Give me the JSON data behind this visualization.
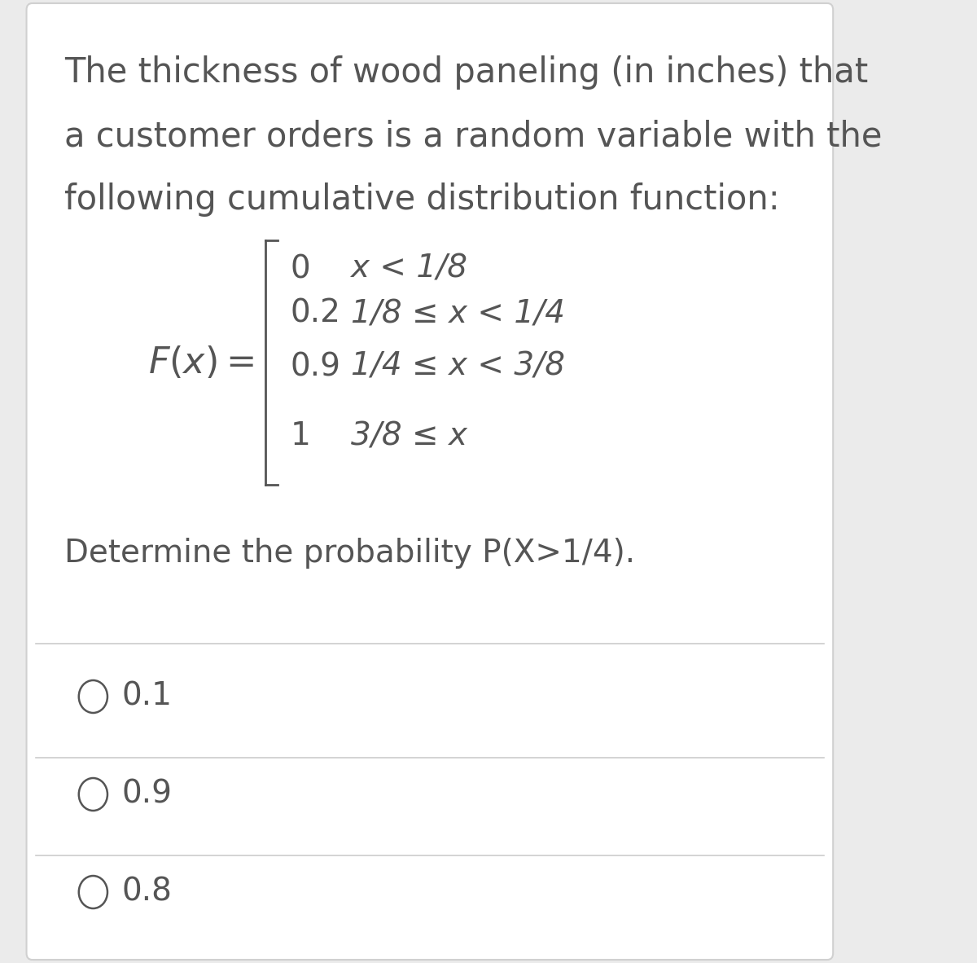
{
  "background_color": "#ebebeb",
  "card_color": "#ffffff",
  "text_color": "#555555",
  "title_fontsize": 30,
  "cdf_fontsize": 28,
  "question_fontsize": 28,
  "options_fontsize": 28,
  "divider_color": "#cccccc",
  "card_border_color": "#d0d0d0",
  "title_lines": [
    "The thickness of wood paneling (in inches) that",
    "a customer orders is a random variable with the",
    "following cumulative distribution function:"
  ],
  "cdf_values": [
    "0",
    "0.2",
    "0.9",
    "1"
  ],
  "cdf_conditions": [
    "x < 1/8",
    "1/8 ≤ x < 1/4",
    "1/4 ≤ x < 3/8",
    "3/8 ≤ x"
  ],
  "question": "Determine the probability P(X>1/4).",
  "options": [
    "0.1",
    "0.9",
    "0.8"
  ],
  "font_weight": "light"
}
